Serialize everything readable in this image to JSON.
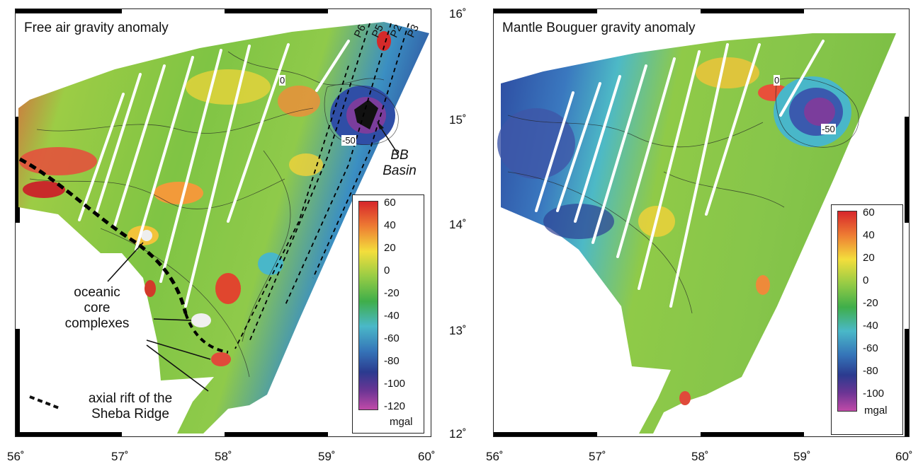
{
  "left_map": {
    "title": "Free air gravity anomaly",
    "profiles": [
      "P6",
      "P5",
      "P2",
      "P3"
    ],
    "annotations": {
      "bb_basin_line1": "BB",
      "bb_basin_line2": "Basin",
      "occ_line1": "oceanic",
      "occ_line2": "core",
      "occ_line3": "complexes",
      "rift_line1": "axial rift of the",
      "rift_line2": "Sheba Ridge"
    },
    "contour_labels": [
      "0",
      "-50"
    ],
    "legend": {
      "ticks": [
        "60",
        "40",
        "20",
        "0",
        "-20",
        "-40",
        "-60",
        "-80",
        "-100",
        "-120"
      ],
      "unit": "mgal"
    }
  },
  "right_map": {
    "title": "Mantle Bouguer gravity anomaly",
    "contour_labels": [
      "0",
      "-50"
    ],
    "legend": {
      "ticks": [
        "60",
        "40",
        "20",
        "0",
        "-20",
        "-40",
        "-60",
        "-80",
        "-100"
      ],
      "unit": "mgal"
    }
  },
  "axes": {
    "x_ticks": [
      "56˚",
      "57˚",
      "58˚",
      "59˚",
      "60˚"
    ],
    "y_ticks": [
      "16˚",
      "15˚",
      "14˚",
      "13˚",
      "12˚"
    ]
  },
  "colors": {
    "colormap": [
      "#e0454e",
      "#ee8a3a",
      "#f2d23a",
      "#8ec63f",
      "#3fae4a",
      "#49b7c9",
      "#3574b8",
      "#2b3c92",
      "#7a3a9a",
      "#b94aa6"
    ],
    "map_base": "#79bf44",
    "track_gaps": "#ffffff"
  }
}
